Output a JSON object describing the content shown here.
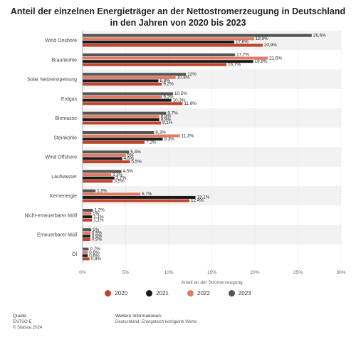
{
  "title_line1": "Anteil der einzelnen Energieträger an der Nettostromerzeugung in Deutschland",
  "title_line2": "in den Jahren von 2020 bis 2023",
  "chart_data": {
    "type": "bar",
    "orientation": "horizontal",
    "xlabel": "Anteil an der Stromerzeugung",
    "xlim": [
      0,
      30
    ],
    "x_ticks": [
      "0%",
      "5%",
      "10%",
      "15%",
      "20%",
      "25%",
      "30%"
    ],
    "grid": true,
    "legend_position": "bottom",
    "categories": [
      "Wind Onshore",
      "Braunkohle",
      "Solar Netzeinspeisung",
      "Erdgas",
      "Biomasse",
      "Steinkohle",
      "Wind Offshore",
      "Laufwasser",
      "Kernenergie",
      "Nicht-erneuerbarer Müll",
      "Erneuerbarer Müll",
      "Öl"
    ],
    "series": [
      {
        "name": "2023",
        "color": "#555555",
        "values": [
          26.6,
          17.7,
          12,
          10.5,
          9.7,
          8.3,
          5.4,
          4.5,
          1.5,
          1.2,
          1,
          0.7
        ],
        "labels": [
          "26,6%",
          "17,7%",
          "12%",
          "10,5%",
          "9,7%",
          "8,3%",
          "5,4%",
          "4,5%",
          "1,5%",
          "1,2%",
          "1%",
          "0,7%"
        ]
      },
      {
        "name": "2022",
        "color": "#e07b66",
        "values": [
          19.9,
          21.5,
          10.8,
          9.2,
          8.9,
          11.3,
          5,
          3.3,
          6.7,
          1,
          0.9,
          0.6
        ],
        "labels": [
          "19,9%",
          "21,5%",
          "10,8%",
          "9,2%",
          "8,9%",
          "11,3%",
          "5%",
          "3,3%",
          "6,7%",
          "1%",
          "0,9%",
          "0,6%"
        ]
      },
      {
        "name": "2021",
        "color": "#1a1a1a",
        "values": [
          17.6,
          19.8,
          8.8,
          10.3,
          8.9,
          9.3,
          4.6,
          3.7,
          13.1,
          1.1,
          0.9,
          0.6
        ],
        "labels": [
          "17,6%",
          "19,8%",
          "8,8%",
          "10,3%",
          "8,9%",
          "9,3%",
          "4,6%",
          "3,7%",
          "13,1%",
          "1,1%",
          "0,9%",
          "0,6%"
        ]
      },
      {
        "name": "2020",
        "color": "#c0442b",
        "values": [
          20.9,
          16.7,
          9.2,
          11.6,
          9.1,
          7.2,
          5.5,
          3.5,
          12.4,
          1.1,
          0.9,
          0.8
        ],
        "labels": [
          "20,9%",
          "16,7%",
          "9,2%",
          "11,6%",
          "9,1%",
          "7,2%",
          "5,5%",
          "3,5%",
          "12,4%",
          "1,1%",
          "0,9%",
          "0,8%"
        ]
      }
    ]
  },
  "legend": [
    {
      "label": "2020",
      "color": "#c0442b"
    },
    {
      "label": "2021",
      "color": "#1a1a1a"
    },
    {
      "label": "2022",
      "color": "#e07b66"
    },
    {
      "label": "2023",
      "color": "#555555"
    }
  ],
  "footer": {
    "quelle_label": "Quelle",
    "source": "ENTSO-E",
    "copyright": "© Statista 2024",
    "info_label": "Weitere Informationen:",
    "info_text": "Deutschland; Energetisch korrigierte Werte"
  }
}
